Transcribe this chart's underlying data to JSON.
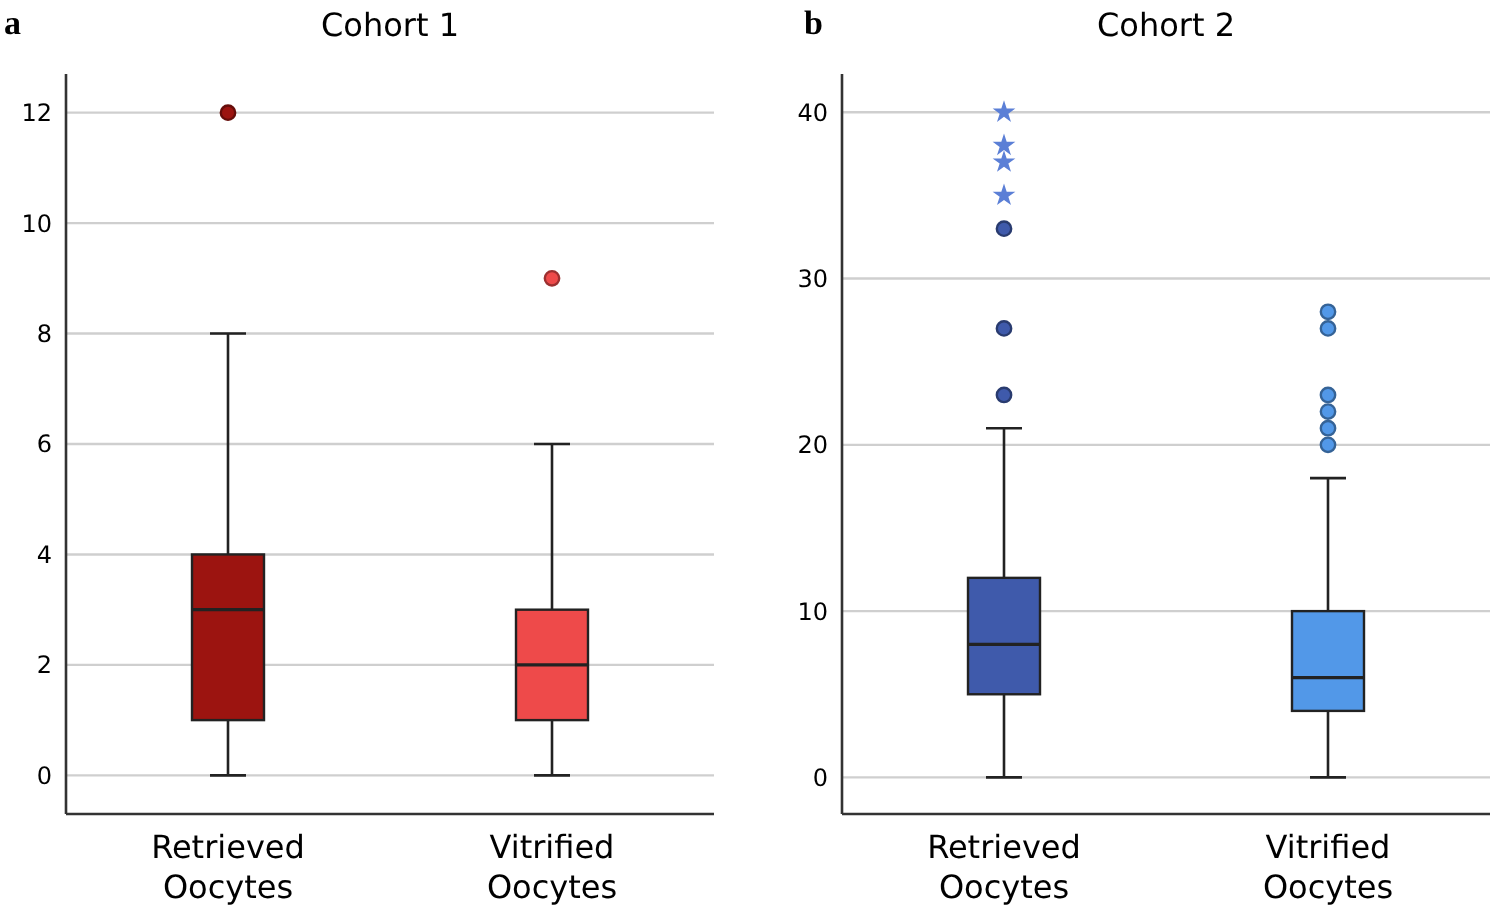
{
  "chart_data": [
    {
      "type": "box",
      "title": "Cohort 1",
      "annotations": [
        "a"
      ],
      "categories": [
        "Retrieved Oocytes",
        "Vitrified Oocytes"
      ],
      "colors": [
        "#9c1410",
        "#ee4a4a"
      ],
      "boxes": [
        {
          "low": 0,
          "q1": 1,
          "median": 3,
          "q3": 4,
          "high": 8,
          "outliers": [
            12
          ]
        },
        {
          "low": 0,
          "q1": 1,
          "median": 2,
          "q3": 3,
          "high": 6,
          "outliers": [
            9
          ]
        }
      ],
      "ylim": [
        -0.7,
        12.7
      ],
      "yticks": [
        0,
        2,
        4,
        6,
        8,
        10,
        12
      ],
      "grid": "y"
    },
    {
      "type": "box",
      "title": "Cohort 2",
      "annotations": [
        "b"
      ],
      "categories": [
        "Retrieved Oocytes",
        "Vitrified Oocytes"
      ],
      "colors": [
        "#3f5aab",
        "#5298e8"
      ],
      "boxes": [
        {
          "low": 0,
          "q1": 5,
          "median": 8,
          "q3": 12,
          "high": 21,
          "outliers": [
            23,
            27,
            33
          ]
        },
        {
          "low": 0,
          "q1": 4,
          "median": 6,
          "q3": 10,
          "high": 18,
          "outliers": [
            20,
            21,
            22,
            23,
            27,
            28
          ]
        }
      ],
      "series": [
        {
          "type": "scatter",
          "marker": "star",
          "color": "#5b7fd6",
          "x": [
            "Retrieved Oocytes",
            "Retrieved Oocytes",
            "Retrieved Oocytes",
            "Retrieved Oocytes"
          ],
          "values": [
            35,
            37,
            38,
            40
          ]
        }
      ],
      "ylim": [
        -2.2,
        42.3
      ],
      "yticks": [
        0,
        10,
        20,
        30,
        40
      ],
      "grid": "y"
    }
  ]
}
